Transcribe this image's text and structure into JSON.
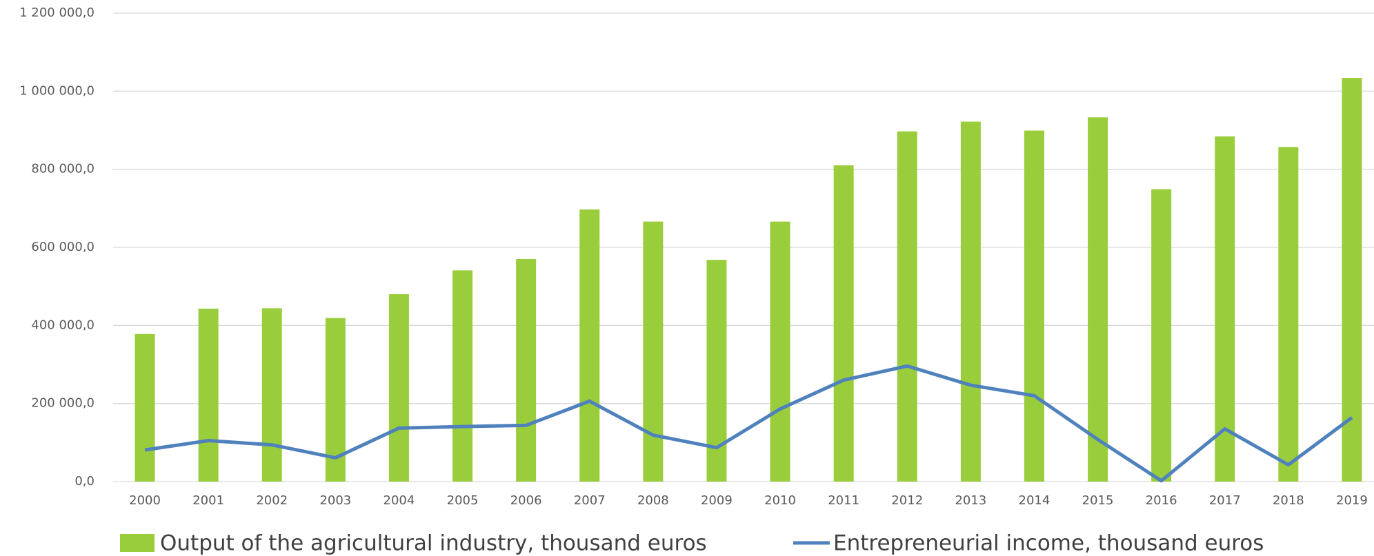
{
  "chart_data": {
    "type": "bar",
    "categories": [
      "2000",
      "2001",
      "2002",
      "2003",
      "2004",
      "2005",
      "2006",
      "2007",
      "2008",
      "2009",
      "2010",
      "2011",
      "2012",
      "2013",
      "2014",
      "2015",
      "2016",
      "2017",
      "2018",
      "2019"
    ],
    "series": [
      {
        "name": "Output of the agricultural industry, thousand euros",
        "type": "bar",
        "color": "#9acd3c",
        "values": [
          378000,
          443000,
          444000,
          419000,
          480000,
          541000,
          570000,
          697000,
          666000,
          568000,
          666000,
          810000,
          897000,
          922000,
          899000,
          933000,
          749000,
          884000,
          857000,
          1034000
        ]
      },
      {
        "name": "Entrepreneurial income, thousand euros",
        "type": "line",
        "color": "#4f81bd",
        "values": [
          81000,
          105000,
          94000,
          61000,
          137000,
          141000,
          144000,
          206000,
          119000,
          87000,
          186000,
          260000,
          296000,
          247000,
          220000,
          108000,
          2000,
          135000,
          43000,
          164000
        ]
      }
    ],
    "ylim": [
      0,
      1200000
    ],
    "yticks": [
      {
        "value": 0,
        "label": "0,0"
      },
      {
        "value": 200000,
        "label": "200 000,0"
      },
      {
        "value": 400000,
        "label": "400 000,0"
      },
      {
        "value": 600000,
        "label": "600 000,0"
      },
      {
        "value": 800000,
        "label": "800 000,0"
      },
      {
        "value": 1000000,
        "label": "1 000 000,0"
      },
      {
        "value": 1200000,
        "label": "1 200 000,0"
      }
    ],
    "grid": true,
    "legend": "bottom"
  }
}
